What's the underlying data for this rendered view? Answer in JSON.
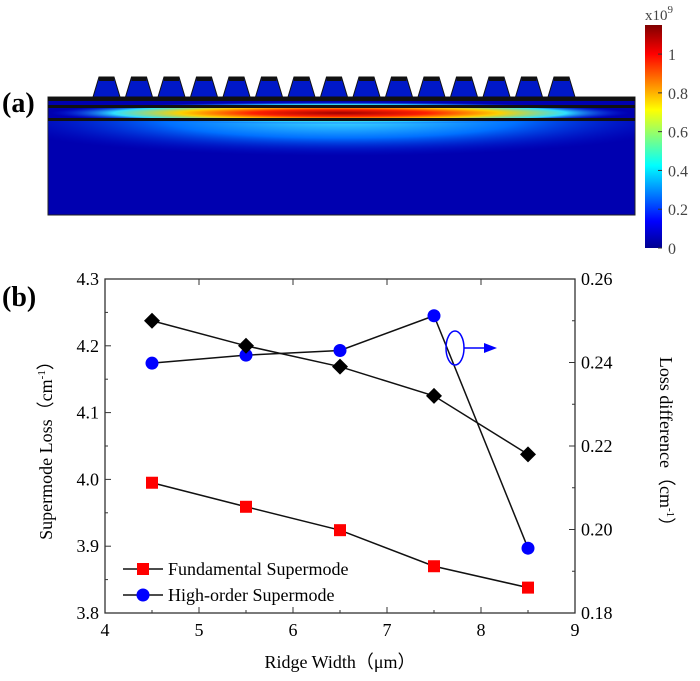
{
  "panel_a": {
    "label": "(a)",
    "colorbar": {
      "multiplier": "x10",
      "exponent": "9",
      "ticks": [
        "0",
        "0.2",
        "0.4",
        "0.6",
        "0.8",
        "1"
      ],
      "range": [
        0,
        1.15
      ],
      "colormap": "jet"
    },
    "ridge_count": 15
  },
  "chart_data": {
    "type": "line",
    "panel_label": "(b)",
    "xlabel": "Ridge Width（μm）",
    "ylabel": "Supermode Loss（cm",
    "ylabel_sup": "-1",
    "ylabel_end": "）",
    "y2label": "Loss difference（cm",
    "y2label_sup": "-1",
    "y2label_end": "）",
    "xlim": [
      4,
      9
    ],
    "ylim": [
      3.8,
      4.3
    ],
    "y2lim": [
      0.18,
      0.26
    ],
    "xticks": [
      "4",
      "5",
      "6",
      "7",
      "8",
      "9"
    ],
    "yticks": [
      "3.8",
      "3.9",
      "4.0",
      "4.1",
      "4.2",
      "4.3"
    ],
    "y2ticks": [
      "0.18",
      "0.20",
      "0.22",
      "0.24",
      "0.26"
    ],
    "grid": false,
    "legend_position": "bottom-left",
    "x": [
      4.5,
      5.5,
      6.5,
      7.5,
      8.5
    ],
    "series": [
      {
        "name": "Fundamental Supermode",
        "axis": "left",
        "marker": "square",
        "color": "#ff0000",
        "values": [
          3.995,
          3.959,
          3.924,
          3.87,
          3.838
        ]
      },
      {
        "name": "High-order Supermode",
        "axis": "left",
        "marker": "circle",
        "color": "#0000ff",
        "values": [
          4.174,
          4.186,
          4.193,
          4.245,
          3.897
        ]
      },
      {
        "axis": "right",
        "marker": "diamond",
        "color": "#000000",
        "values": [
          0.25,
          0.244,
          0.239,
          0.232,
          0.218
        ]
      }
    ],
    "annotation": "ellipse with arrow pointing to right axis"
  }
}
